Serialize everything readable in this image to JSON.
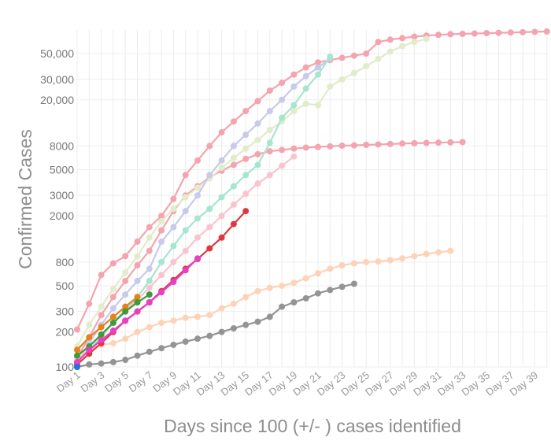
{
  "chart_data": {
    "type": "line",
    "title": "",
    "xlabel": "Days since 100 (+/- ) cases identified",
    "ylabel": "Confirmed Cases",
    "y_scale": "log",
    "ylim": [
      100,
      80000
    ],
    "xlim": [
      1,
      40
    ],
    "grid": true,
    "y_ticks": [
      {
        "value": 100,
        "label": "100"
      },
      {
        "value": 200,
        "label": "200"
      },
      {
        "value": 300,
        "label": "300"
      },
      {
        "value": 500,
        "label": "500"
      },
      {
        "value": 800,
        "label": "800"
      },
      {
        "value": 2000,
        "label": "2000"
      },
      {
        "value": 3000,
        "label": "3000"
      },
      {
        "value": 5000,
        "label": "5000"
      },
      {
        "value": 8000,
        "label": "8000"
      },
      {
        "value": 20000,
        "label": "20,000"
      },
      {
        "value": 30000,
        "label": "30,000"
      },
      {
        "value": 50000,
        "label": "50,000"
      }
    ],
    "x_ticks": [
      {
        "value": 1,
        "label": "Day 1"
      },
      {
        "value": 3,
        "label": "Day 3"
      },
      {
        "value": 5,
        "label": "Day 5"
      },
      {
        "value": 7,
        "label": "Day 7"
      },
      {
        "value": 9,
        "label": "Day 9"
      },
      {
        "value": 11,
        "label": "Day 11"
      },
      {
        "value": 13,
        "label": "Day 13"
      },
      {
        "value": 15,
        "label": "Day 15"
      },
      {
        "value": 17,
        "label": "Day 17"
      },
      {
        "value": 19,
        "label": "Day 19"
      },
      {
        "value": 21,
        "label": "Day 21"
      },
      {
        "value": 23,
        "label": "Day 23"
      },
      {
        "value": 25,
        "label": "Day 25"
      },
      {
        "value": 27,
        "label": "Day 27"
      },
      {
        "value": 29,
        "label": "Day 29"
      },
      {
        "value": 31,
        "label": "Day 31"
      },
      {
        "value": 33,
        "label": "Day 33"
      },
      {
        "value": 35,
        "label": "Day 35"
      },
      {
        "value": 37,
        "label": "Day 37"
      },
      {
        "value": 39,
        "label": "Day 39"
      }
    ],
    "series": [
      {
        "name": "series-pink-long",
        "color": "#f4a4ae",
        "x": [
          1,
          2,
          3,
          4,
          5,
          6,
          7,
          8,
          9,
          10,
          11,
          12,
          13,
          14,
          15,
          16,
          17,
          18,
          19,
          20,
          21,
          22,
          23,
          24,
          25,
          26,
          27,
          28,
          29,
          30,
          31,
          32,
          33,
          34,
          35,
          36,
          37,
          38,
          39,
          40
        ],
        "values": [
          210,
          350,
          620,
          780,
          900,
          1200,
          1600,
          2000,
          2800,
          4500,
          6000,
          8000,
          10500,
          13000,
          16000,
          19500,
          24000,
          28000,
          33000,
          38000,
          42000,
          44000,
          46000,
          48000,
          50000,
          63000,
          66000,
          68000,
          70000,
          71500,
          72500,
          73500,
          74000,
          74500,
          75000,
          75500,
          76000,
          76500,
          77000,
          77500
        ]
      },
      {
        "name": "series-salmon-plateau",
        "color": "#f4a4ae",
        "x": [
          1,
          2,
          3,
          4,
          5,
          6,
          7,
          8,
          9,
          10,
          11,
          12,
          13,
          14,
          15,
          16,
          17,
          18,
          19,
          20,
          21,
          22,
          23,
          24,
          25,
          26,
          27,
          28,
          29,
          30,
          31,
          32,
          33
        ],
        "values": [
          120,
          180,
          280,
          400,
          550,
          750,
          1000,
          1500,
          2200,
          3000,
          3600,
          4300,
          4900,
          5500,
          6200,
          6800,
          7200,
          7400,
          7600,
          7750,
          7850,
          7950,
          8050,
          8100,
          8180,
          8250,
          8320,
          8400,
          8450,
          8500,
          8550,
          8600,
          8650
        ]
      },
      {
        "name": "series-lime-long",
        "color": "#e1ecca",
        "x": [
          1,
          2,
          3,
          4,
          5,
          6,
          7,
          8,
          9,
          10,
          11,
          12,
          13,
          14,
          15,
          16,
          17,
          18,
          19,
          20,
          21,
          22,
          23,
          24,
          25,
          26,
          27,
          28,
          29,
          30
        ],
        "values": [
          150,
          230,
          330,
          470,
          650,
          900,
          1300,
          1800,
          2300,
          2900,
          3500,
          4200,
          5200,
          6300,
          7600,
          9000,
          11000,
          13000,
          16000,
          18500,
          18000,
          26000,
          30000,
          34000,
          39000,
          45000,
          52000,
          58000,
          63000,
          67000
        ]
      },
      {
        "name": "series-lavender",
        "color": "#c7cae9",
        "x": [
          1,
          2,
          3,
          4,
          5,
          6,
          7,
          8,
          9,
          10,
          11,
          12,
          13,
          14,
          15,
          16,
          17,
          18,
          19,
          20,
          21,
          22
        ],
        "values": [
          110,
          160,
          230,
          320,
          420,
          550,
          700,
          1200,
          1600,
          2200,
          3000,
          4500,
          6000,
          8000,
          10000,
          12500,
          16000,
          20000,
          26000,
          32000,
          38000,
          45000
        ]
      },
      {
        "name": "series-mint",
        "color": "#a6e5d0",
        "x": [
          1,
          2,
          3,
          4,
          5,
          6,
          7,
          8,
          9,
          10,
          11,
          12,
          13,
          14,
          15,
          16,
          17,
          18,
          19,
          20,
          21,
          22
        ],
        "values": [
          110,
          140,
          180,
          240,
          310,
          400,
          550,
          800,
          1100,
          1500,
          1900,
          2300,
          2900,
          3600,
          4500,
          5500,
          8500,
          14000,
          18000,
          25000,
          33000,
          47000
        ]
      },
      {
        "name": "series-light-pink",
        "color": "#f9c4cf",
        "x": [
          1,
          2,
          3,
          4,
          5,
          6,
          7,
          8,
          9,
          10,
          11,
          12,
          13,
          14,
          15,
          16,
          17,
          18,
          19
        ],
        "values": [
          120,
          150,
          190,
          240,
          300,
          380,
          480,
          620,
          800,
          1000,
          1300,
          1600,
          2000,
          2500,
          3100,
          3800,
          4500,
          5400,
          6500
        ]
      },
      {
        "name": "series-peach",
        "color": "#fed2b8",
        "x": [
          1,
          2,
          3,
          4,
          5,
          6,
          7,
          8,
          9,
          10,
          11,
          12,
          13,
          14,
          15,
          16,
          17,
          18,
          19,
          20,
          21,
          22,
          23,
          24,
          25,
          26,
          27,
          28,
          29,
          30,
          31,
          32
        ],
        "values": [
          120,
          140,
          155,
          160,
          175,
          200,
          220,
          240,
          250,
          265,
          270,
          280,
          320,
          350,
          400,
          450,
          480,
          500,
          530,
          580,
          640,
          700,
          750,
          780,
          800,
          810,
          830,
          860,
          900,
          940,
          970,
          1000
        ]
      },
      {
        "name": "series-gray",
        "color": "#949494",
        "x": [
          1,
          2,
          3,
          4,
          5,
          6,
          7,
          8,
          9,
          10,
          11,
          12,
          13,
          14,
          15,
          16,
          17,
          18,
          19,
          20,
          21,
          22,
          23,
          24
        ],
        "values": [
          100,
          105,
          107,
          110,
          115,
          125,
          135,
          145,
          155,
          165,
          175,
          185,
          200,
          215,
          230,
          245,
          270,
          330,
          360,
          390,
          430,
          460,
          490,
          520
        ]
      },
      {
        "name": "series-red",
        "color": "#dd3840",
        "x": [
          1,
          2,
          3,
          4,
          5,
          6,
          7,
          8,
          9,
          10,
          11,
          12,
          13,
          14,
          15
        ],
        "values": [
          105,
          130,
          160,
          200,
          250,
          300,
          360,
          450,
          560,
          700,
          850,
          1050,
          1300,
          1700,
          2200
        ]
      },
      {
        "name": "series-orange",
        "color": "#e8801e",
        "x": [
          1,
          2,
          3,
          4,
          5,
          6
        ],
        "values": [
          140,
          180,
          220,
          270,
          330,
          400
        ]
      },
      {
        "name": "series-green",
        "color": "#3c9b3c",
        "x": [
          1,
          2,
          3,
          4,
          5,
          6,
          7
        ],
        "values": [
          125,
          150,
          190,
          240,
          300,
          360,
          420
        ]
      },
      {
        "name": "series-magenta",
        "color": "#e83fc4",
        "x": [
          1,
          2,
          3,
          4,
          5,
          6,
          7,
          8,
          9,
          10,
          11
        ],
        "values": [
          110,
          140,
          170,
          205,
          250,
          300,
          360,
          440,
          540,
          680,
          860
        ]
      },
      {
        "name": "series-blue",
        "color": "#1d73e2",
        "x": [
          1
        ],
        "values": [
          100
        ]
      }
    ]
  }
}
